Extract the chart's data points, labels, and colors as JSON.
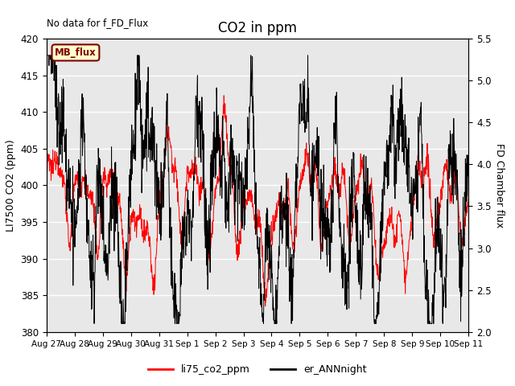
{
  "title": "CO2 in ppm",
  "topleft_text": "No data for f_FD_Flux",
  "ylabel_left": "LI7500 CO2 (ppm)",
  "ylabel_right": "FD Chamber flux",
  "ylim_left": [
    380,
    420
  ],
  "ylim_right": [
    2.0,
    5.5
  ],
  "xtick_labels": [
    "Aug 27",
    "Aug 28",
    "Aug 29",
    "Aug 30",
    "Aug 31",
    "Sep 1",
    "Sep 2",
    "Sep 3",
    "Sep 4",
    "Sep 5",
    "Sep 6",
    "Sep 7",
    "Sep 8",
    "Sep 9",
    "Sep 10",
    "Sep 11"
  ],
  "legend_box_label": "MB_flux",
  "legend_box_facecolor": "#ffffcc",
  "legend_box_edgecolor": "#800000",
  "legend_entries": [
    "li75_co2_ppm",
    "er_ANNnight"
  ],
  "line_colors": [
    "red",
    "black"
  ],
  "bg_color": "#e8e8e8",
  "grid_color": "white",
  "title_fontsize": 12,
  "label_fontsize": 9,
  "yticks_left": [
    380,
    385,
    390,
    395,
    400,
    405,
    410,
    415,
    420
  ],
  "yticks_right": [
    2.0,
    2.5,
    3.0,
    3.5,
    4.0,
    4.5,
    5.0,
    5.5
  ]
}
